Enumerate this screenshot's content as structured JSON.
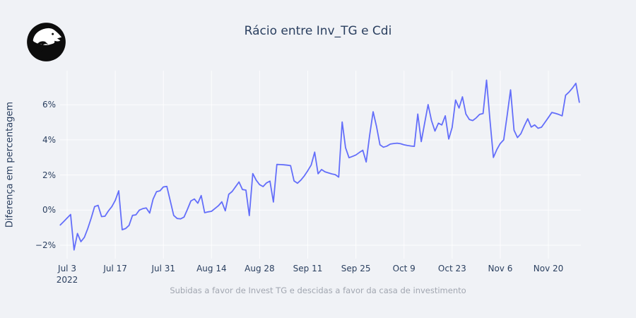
{
  "page": {
    "background_color": "#f0f2f6"
  },
  "logo": {
    "semantic": "animal-head-logo",
    "circle_color": "#0d0d0d",
    "figure_color": "#ffffff"
  },
  "header": {
    "title": "Rácio entre Inv_TG e Cdi"
  },
  "footer": {
    "caption": "Subidas a favor de Invest TG e descidas a favor da casa de investimento"
  },
  "colors": {
    "line": "#636efa",
    "title_text": "#2a3f5f",
    "tick_text": "#2a3f5f",
    "caption_text": "#a1a6b0",
    "gridline": "#ffffff"
  },
  "chart_data": {
    "type": "line",
    "title": "Rácio entre Inv_TG e Cdi",
    "subtitle": "Subidas a favor de Invest TG e descidas a favor da casa de investimento",
    "xlabel": "",
    "ylabel": "Diferença em percentagem",
    "grid": true,
    "legend": "none",
    "x_start": "2022-07-01",
    "x_end": "2022-11-29",
    "x_freq": "daily",
    "ylim": [
      -2.8,
      8.0
    ],
    "unit": "%",
    "values": [
      -0.85,
      -0.65,
      -0.45,
      -0.25,
      -2.27,
      -1.33,
      -1.8,
      -1.55,
      -1.05,
      -0.45,
      0.2,
      0.27,
      -0.37,
      -0.35,
      -0.05,
      0.2,
      0.55,
      1.1,
      -1.12,
      -1.05,
      -0.87,
      -0.3,
      -0.27,
      0.0,
      0.08,
      0.12,
      -0.17,
      0.62,
      1.05,
      1.1,
      1.32,
      1.35,
      0.52,
      -0.3,
      -0.48,
      -0.5,
      -0.4,
      0.05,
      0.52,
      0.63,
      0.39,
      0.83,
      -0.15,
      -0.1,
      -0.07,
      0.09,
      0.25,
      0.47,
      -0.04,
      0.9,
      1.06,
      1.33,
      1.6,
      1.17,
      1.14,
      -0.31,
      2.08,
      1.7,
      1.45,
      1.34,
      1.55,
      1.65,
      0.46,
      2.6,
      2.59,
      2.58,
      2.56,
      2.53,
      1.66,
      1.53,
      1.71,
      1.95,
      2.24,
      2.57,
      3.3,
      2.07,
      2.31,
      2.18,
      2.12,
      2.06,
      2.02,
      1.88,
      5.02,
      3.55,
      2.98,
      3.06,
      3.14,
      3.28,
      3.41,
      2.74,
      4.26,
      5.6,
      4.76,
      3.72,
      3.58,
      3.64,
      3.76,
      3.79,
      3.81,
      3.78,
      3.72,
      3.68,
      3.65,
      3.63,
      5.47,
      3.9,
      4.95,
      6.01,
      5.1,
      4.5,
      4.95,
      4.85,
      5.37,
      4.05,
      4.7,
      6.27,
      5.81,
      6.45,
      5.47,
      5.16,
      5.1,
      5.25,
      5.45,
      5.5,
      7.4,
      5.15,
      3.0,
      3.45,
      3.79,
      4.0,
      5.4,
      6.85,
      4.55,
      4.13,
      4.35,
      4.8,
      5.2,
      4.73,
      4.85,
      4.66,
      4.72,
      5.0,
      5.27,
      5.56,
      5.51,
      5.45,
      5.37,
      6.54,
      6.72,
      6.95,
      7.22,
      6.14
    ],
    "x_ticks": [
      {
        "label": "Jul 3",
        "sublabel": "2022",
        "day_index": 2
      },
      {
        "label": "Jul 17",
        "sublabel": "",
        "day_index": 16
      },
      {
        "label": "Jul 31",
        "sublabel": "",
        "day_index": 30
      },
      {
        "label": "Aug 14",
        "sublabel": "",
        "day_index": 44
      },
      {
        "label": "Aug 28",
        "sublabel": "",
        "day_index": 58
      },
      {
        "label": "Sep 11",
        "sublabel": "",
        "day_index": 72
      },
      {
        "label": "Sep 25",
        "sublabel": "",
        "day_index": 86
      },
      {
        "label": "Oct 9",
        "sublabel": "",
        "day_index": 100
      },
      {
        "label": "Oct 23",
        "sublabel": "",
        "day_index": 114
      },
      {
        "label": "Nov 6",
        "sublabel": "",
        "day_index": 128
      },
      {
        "label": "Nov 20",
        "sublabel": "",
        "day_index": 142
      }
    ],
    "y_ticks": [
      {
        "value": -2,
        "label": "−2%"
      },
      {
        "value": 0,
        "label": "0%"
      },
      {
        "value": 2,
        "label": "2%"
      },
      {
        "value": 4,
        "label": "4%"
      },
      {
        "value": 6,
        "label": "6%"
      }
    ]
  }
}
